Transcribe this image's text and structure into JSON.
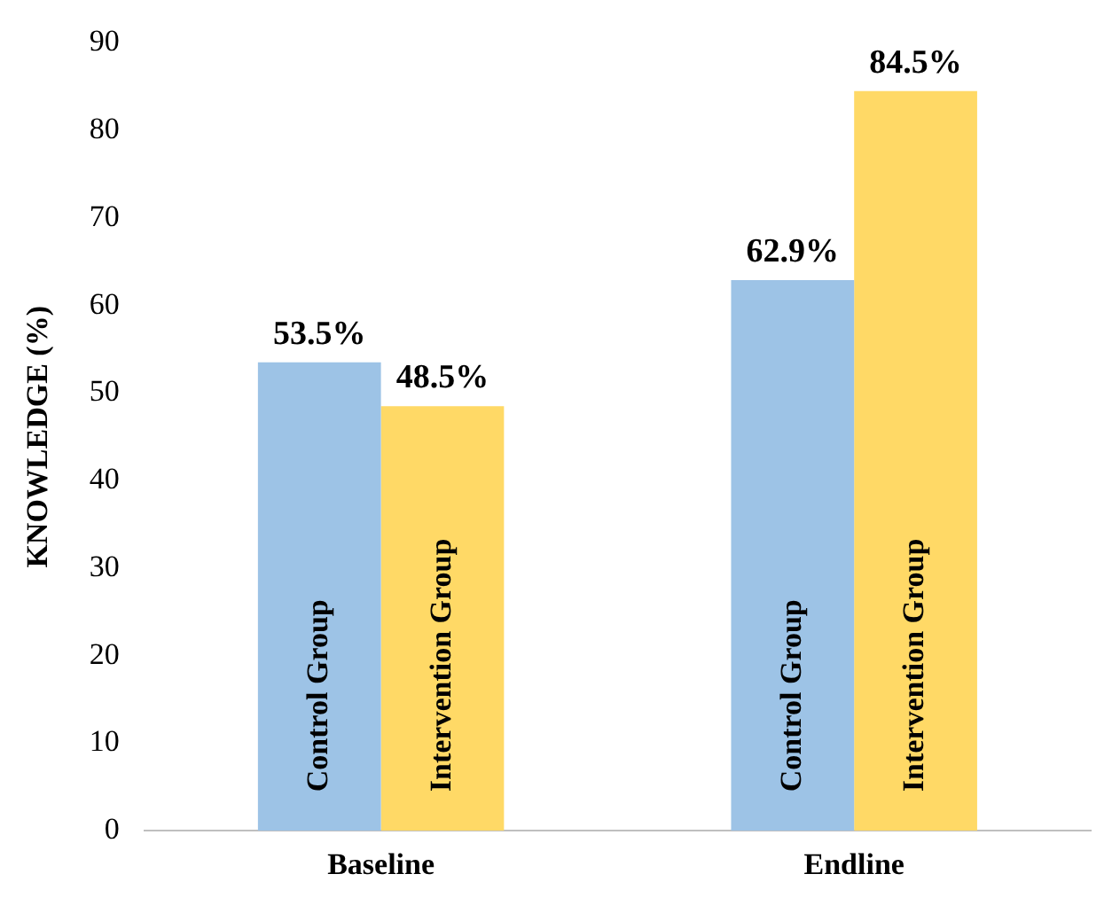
{
  "chart_data": {
    "type": "bar",
    "ylabel": "KNOWLEDGE (%)",
    "categories": [
      "Baseline",
      "Endline"
    ],
    "series": [
      {
        "name": "Control Group",
        "color": "#9dc3e6",
        "values": [
          53.5,
          62.9
        ],
        "value_labels": [
          "53.5%",
          "62.9%"
        ]
      },
      {
        "name": "Intervention Group",
        "color": "#ffd966",
        "values": [
          48.5,
          84.5
        ],
        "value_labels": [
          "48.5%",
          "84.5%"
        ]
      }
    ],
    "ylim": [
      0,
      90
    ],
    "yticks": [
      0,
      10,
      20,
      30,
      40,
      50,
      60,
      70,
      80,
      90
    ],
    "grid": false,
    "legend": false
  }
}
